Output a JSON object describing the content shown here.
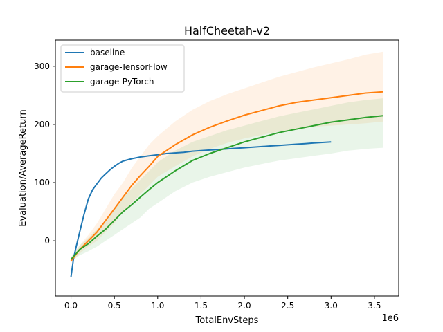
{
  "chart_data": {
    "type": "line",
    "title": "HalfCheetah-v2",
    "xlabel": "TotalEnvSteps",
    "ylabel": "Evaluation/AverageReturn",
    "x_offset_label": "1e6",
    "xlim": [
      -0.18,
      3.78
    ],
    "ylim": [
      -95,
      345
    ],
    "x_ticks": [
      0.0,
      0.5,
      1.0,
      1.5,
      2.0,
      2.5,
      3.0,
      3.5
    ],
    "x_tick_labels": [
      "0.0",
      "0.5",
      "1.0",
      "1.5",
      "2.0",
      "2.5",
      "3.0",
      "3.5"
    ],
    "y_ticks": [
      0,
      100,
      200,
      300
    ],
    "y_tick_labels": [
      "0",
      "100",
      "200",
      "300"
    ],
    "grid": false,
    "legend_position": "top-left",
    "series": [
      {
        "name": "baseline",
        "color": "#1f77b4",
        "x": [
          0.0,
          0.03,
          0.06,
          0.1,
          0.15,
          0.2,
          0.25,
          0.3,
          0.35,
          0.4,
          0.45,
          0.5,
          0.55,
          0.6,
          0.7,
          0.8,
          0.9,
          1.0,
          1.1,
          1.2,
          1.3,
          1.4,
          1.5,
          1.6,
          1.7,
          1.8,
          1.9,
          2.0,
          2.1,
          2.2,
          2.3,
          2.4,
          2.5,
          2.6,
          2.7,
          2.8,
          2.9,
          3.0
        ],
        "y": [
          -62,
          -30,
          -10,
          15,
          45,
          72,
          88,
          98,
          108,
          115,
          122,
          128,
          133,
          137,
          141,
          144,
          146,
          148,
          150,
          151,
          152,
          154,
          155,
          156,
          157,
          158,
          159,
          160,
          161,
          162,
          163,
          164,
          165,
          166,
          167,
          168,
          169,
          170
        ]
      },
      {
        "name": "garage-TensorFlow",
        "color": "#ff7f0e",
        "x": [
          0.0,
          0.1,
          0.2,
          0.3,
          0.4,
          0.5,
          0.6,
          0.7,
          0.8,
          0.9,
          1.0,
          1.2,
          1.4,
          1.6,
          1.8,
          2.0,
          2.2,
          2.4,
          2.6,
          2.8,
          3.0,
          3.2,
          3.4,
          3.6
        ],
        "y": [
          -35,
          -15,
          0,
          15,
          35,
          55,
          75,
          95,
          112,
          128,
          145,
          165,
          182,
          195,
          206,
          216,
          224,
          232,
          238,
          242,
          246,
          250,
          254,
          256
        ],
        "band_lower": [
          -38,
          -22,
          -10,
          0,
          15,
          30,
          50,
          65,
          80,
          95,
          110,
          128,
          145,
          158,
          168,
          176,
          182,
          188,
          192,
          196,
          198,
          200,
          202,
          205
        ],
        "band_upper": [
          -30,
          -8,
          10,
          30,
          55,
          80,
          100,
          125,
          145,
          165,
          180,
          205,
          225,
          240,
          252,
          262,
          272,
          282,
          290,
          298,
          305,
          312,
          320,
          325
        ]
      },
      {
        "name": "garage-PyTorch",
        "color": "#2ca02c",
        "x": [
          0.0,
          0.1,
          0.2,
          0.3,
          0.4,
          0.5,
          0.6,
          0.7,
          0.8,
          0.9,
          1.0,
          1.2,
          1.4,
          1.6,
          1.8,
          2.0,
          2.2,
          2.4,
          2.6,
          2.8,
          3.0,
          3.2,
          3.4,
          3.6
        ],
        "y": [
          -32,
          -15,
          -5,
          8,
          20,
          35,
          50,
          62,
          75,
          88,
          100,
          120,
          138,
          150,
          160,
          170,
          178,
          186,
          192,
          198,
          204,
          208,
          212,
          215
        ],
        "band_lower": [
          -35,
          -25,
          -18,
          -10,
          0,
          10,
          20,
          30,
          40,
          55,
          65,
          85,
          100,
          110,
          118,
          126,
          132,
          138,
          142,
          146,
          150,
          155,
          158,
          160
        ],
        "band_upper": [
          -28,
          -8,
          5,
          20,
          35,
          55,
          75,
          90,
          105,
          120,
          135,
          155,
          170,
          180,
          190,
          198,
          206,
          214,
          220,
          226,
          232,
          238,
          242,
          245
        ]
      }
    ]
  }
}
